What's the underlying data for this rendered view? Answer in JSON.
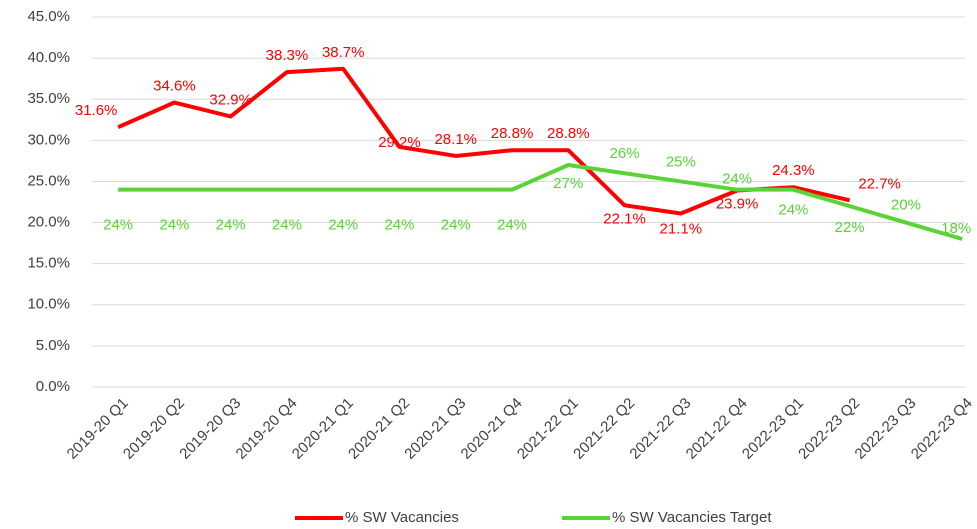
{
  "chart_data": {
    "type": "line",
    "categories": [
      "2019-20 Q1",
      "2019-20 Q2",
      "2019-20 Q3",
      "2019-20 Q4",
      "2020-21 Q1",
      "2020-21 Q2",
      "2020-21 Q3",
      "2020-21 Q4",
      "2021-22 Q1",
      "2021-22 Q2",
      "2021-22 Q3",
      "2021-22 Q4",
      "2022-23 Q1",
      "2022-23 Q2",
      "2022-23 Q3",
      "2022-23 Q4"
    ],
    "series": [
      {
        "name": "% SW Vacancies",
        "color": "#ff0000",
        "values": [
          31.6,
          34.6,
          32.9,
          38.3,
          38.7,
          29.2,
          28.1,
          28.8,
          28.8,
          22.1,
          21.1,
          23.9,
          24.3,
          22.7,
          null,
          null
        ],
        "value_labels": [
          "31.6%",
          "34.6%",
          "32.9%",
          "38.3%",
          "38.7%",
          "29.2%",
          "28.1%",
          "28.8%",
          "28.8%",
          "22.1%",
          "21.1%",
          "23.9%",
          "24.3%",
          "22.7%",
          null,
          null
        ]
      },
      {
        "name": "% SW Vacancies Target",
        "color": "#5ad337",
        "values": [
          24,
          24,
          24,
          24,
          24,
          24,
          24,
          24,
          27,
          26,
          25,
          24,
          24,
          22,
          20,
          18
        ],
        "value_labels": [
          "24%",
          "24%",
          "24%",
          "24%",
          "24%",
          "24%",
          "24%",
          "24%",
          "27%",
          "26%",
          "25%",
          "24%",
          "24%",
          "22%",
          "20%",
          "18%"
        ]
      }
    ],
    "ylim": [
      0,
      45
    ],
    "yticks": [
      {
        "value": 0,
        "label": "0.0%"
      },
      {
        "value": 5,
        "label": "5.0%"
      },
      {
        "value": 10,
        "label": "10.0%"
      },
      {
        "value": 15,
        "label": "15.0%"
      },
      {
        "value": 20,
        "label": "20.0%"
      },
      {
        "value": 25,
        "label": "25.0%"
      },
      {
        "value": 30,
        "label": "30.0%"
      },
      {
        "value": 35,
        "label": "35.0%"
      },
      {
        "value": 40,
        "label": "40.0%"
      },
      {
        "value": 45,
        "label": "45.0%"
      }
    ],
    "grid": true,
    "legend": "bottom"
  }
}
